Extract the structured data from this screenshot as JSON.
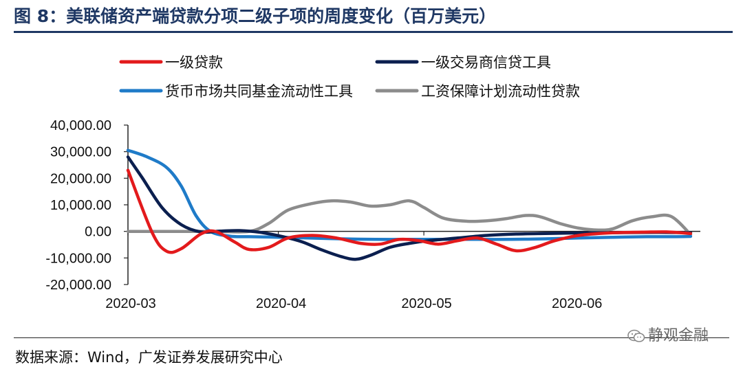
{
  "header": {
    "title": "图 8：美联储资产端贷款分项二级子项的周度变化（百万美元）"
  },
  "footer": {
    "source": "数据来源：Wind，广发证券发展研究中心",
    "brand": "静观金融",
    "brand_icon": "wechat-icon"
  },
  "chart_data": {
    "type": "line",
    "ylim": [
      -20000,
      40000
    ],
    "yticks": [
      -20000,
      -10000,
      0,
      10000,
      20000,
      30000,
      40000
    ],
    "ytick_labels": [
      "-20,000.00",
      "-10,000.00",
      "0.00",
      "10,000.00",
      "20,000.00",
      "30,000.00",
      "40,000.00"
    ],
    "xlim": [
      "2020-03-01",
      "2020-06-27"
    ],
    "xtick_dates": [
      "2020-03-01",
      "2020-04-01",
      "2020-05-01",
      "2020-06-01"
    ],
    "xtick_labels": [
      "2020-03",
      "2020-04",
      "2020-05",
      "2020-06"
    ],
    "legend_position": "top",
    "grid": false,
    "series": [
      {
        "name": "一级贷款",
        "color": "#e31a1c",
        "points": [
          [
            "2020-03-01",
            23000
          ],
          [
            "2020-03-06",
            -500
          ],
          [
            "2020-03-09",
            -7500
          ],
          [
            "2020-03-12",
            -6500
          ],
          [
            "2020-03-16",
            -1000
          ],
          [
            "2020-03-19",
            0
          ],
          [
            "2020-03-23",
            -4000
          ],
          [
            "2020-03-26",
            -6800
          ],
          [
            "2020-03-30",
            -6000
          ],
          [
            "2020-04-03",
            -2500
          ],
          [
            "2020-04-08",
            -1500
          ],
          [
            "2020-04-13",
            -2500
          ],
          [
            "2020-04-18",
            -4500
          ],
          [
            "2020-04-22",
            -4800
          ],
          [
            "2020-04-26",
            -3000
          ],
          [
            "2020-04-30",
            -3500
          ],
          [
            "2020-05-04",
            -4800
          ],
          [
            "2020-05-08",
            -3500
          ],
          [
            "2020-05-12",
            -2500
          ],
          [
            "2020-05-16",
            -4800
          ],
          [
            "2020-05-20",
            -7300
          ],
          [
            "2020-05-24",
            -6000
          ],
          [
            "2020-05-28",
            -3500
          ],
          [
            "2020-06-02",
            -1500
          ],
          [
            "2020-06-08",
            -600
          ],
          [
            "2020-06-15",
            -300
          ],
          [
            "2020-06-20",
            -200
          ],
          [
            "2020-06-25",
            -800
          ]
        ]
      },
      {
        "name": "一级交易商信贷工具",
        "color": "#0b1f4f",
        "points": [
          [
            "2020-03-01",
            28000
          ],
          [
            "2020-03-04",
            20000
          ],
          [
            "2020-03-08",
            9000
          ],
          [
            "2020-03-12",
            2500
          ],
          [
            "2020-03-16",
            -200
          ],
          [
            "2020-03-20",
            100
          ],
          [
            "2020-03-24",
            300
          ],
          [
            "2020-03-28",
            -300
          ],
          [
            "2020-04-02",
            -2000
          ],
          [
            "2020-04-06",
            -4000
          ],
          [
            "2020-04-10",
            -7000
          ],
          [
            "2020-04-14",
            -9500
          ],
          [
            "2020-04-17",
            -10500
          ],
          [
            "2020-04-20",
            -9000
          ],
          [
            "2020-04-24",
            -6000
          ],
          [
            "2020-04-28",
            -4500
          ],
          [
            "2020-05-02",
            -3500
          ],
          [
            "2020-05-08",
            -2500
          ],
          [
            "2020-05-14",
            -1500
          ],
          [
            "2020-05-20",
            -1000
          ],
          [
            "2020-05-26",
            -800
          ],
          [
            "2020-06-01",
            -600
          ],
          [
            "2020-06-08",
            -500
          ],
          [
            "2020-06-15",
            -400
          ],
          [
            "2020-06-20",
            -400
          ],
          [
            "2020-06-25",
            -500
          ]
        ]
      },
      {
        "name": "货币市场共同基金流动性工具",
        "color": "#1f7bc8",
        "points": [
          [
            "2020-03-01",
            30500
          ],
          [
            "2020-03-05",
            28000
          ],
          [
            "2020-03-09",
            24000
          ],
          [
            "2020-03-12",
            17000
          ],
          [
            "2020-03-15",
            6000
          ],
          [
            "2020-03-18",
            0
          ],
          [
            "2020-03-22",
            -1800
          ],
          [
            "2020-03-26",
            -2000
          ],
          [
            "2020-04-01",
            -2200
          ],
          [
            "2020-04-07",
            -2500
          ],
          [
            "2020-04-14",
            -2800
          ],
          [
            "2020-04-21",
            -3000
          ],
          [
            "2020-04-28",
            -3000
          ],
          [
            "2020-05-05",
            -3000
          ],
          [
            "2020-05-12",
            -3000
          ],
          [
            "2020-05-19",
            -3000
          ],
          [
            "2020-05-26",
            -2800
          ],
          [
            "2020-06-02",
            -2500
          ],
          [
            "2020-06-09",
            -2200
          ],
          [
            "2020-06-16",
            -2000
          ],
          [
            "2020-06-22",
            -2000
          ],
          [
            "2020-06-25",
            -1900
          ]
        ]
      },
      {
        "name": "工资保障计划流动性贷款",
        "color": "#8c8c8c",
        "points": [
          [
            "2020-03-01",
            0
          ],
          [
            "2020-03-10",
            0
          ],
          [
            "2020-03-19",
            0
          ],
          [
            "2020-03-26",
            0
          ],
          [
            "2020-03-30",
            3000
          ],
          [
            "2020-04-03",
            8000
          ],
          [
            "2020-04-08",
            10500
          ],
          [
            "2020-04-12",
            11500
          ],
          [
            "2020-04-16",
            11000
          ],
          [
            "2020-04-20",
            9500
          ],
          [
            "2020-04-24",
            10000
          ],
          [
            "2020-04-28",
            11500
          ],
          [
            "2020-05-01",
            9000
          ],
          [
            "2020-05-05",
            5000
          ],
          [
            "2020-05-10",
            3800
          ],
          [
            "2020-05-14",
            4000
          ],
          [
            "2020-05-18",
            4800
          ],
          [
            "2020-05-22",
            6000
          ],
          [
            "2020-05-25",
            5500
          ],
          [
            "2020-05-29",
            3000
          ],
          [
            "2020-06-02",
            1200
          ],
          [
            "2020-06-06",
            500
          ],
          [
            "2020-06-09",
            1000
          ],
          [
            "2020-06-13",
            4000
          ],
          [
            "2020-06-17",
            5500
          ],
          [
            "2020-06-21",
            5600
          ],
          [
            "2020-06-25",
            -1200
          ]
        ]
      }
    ]
  }
}
